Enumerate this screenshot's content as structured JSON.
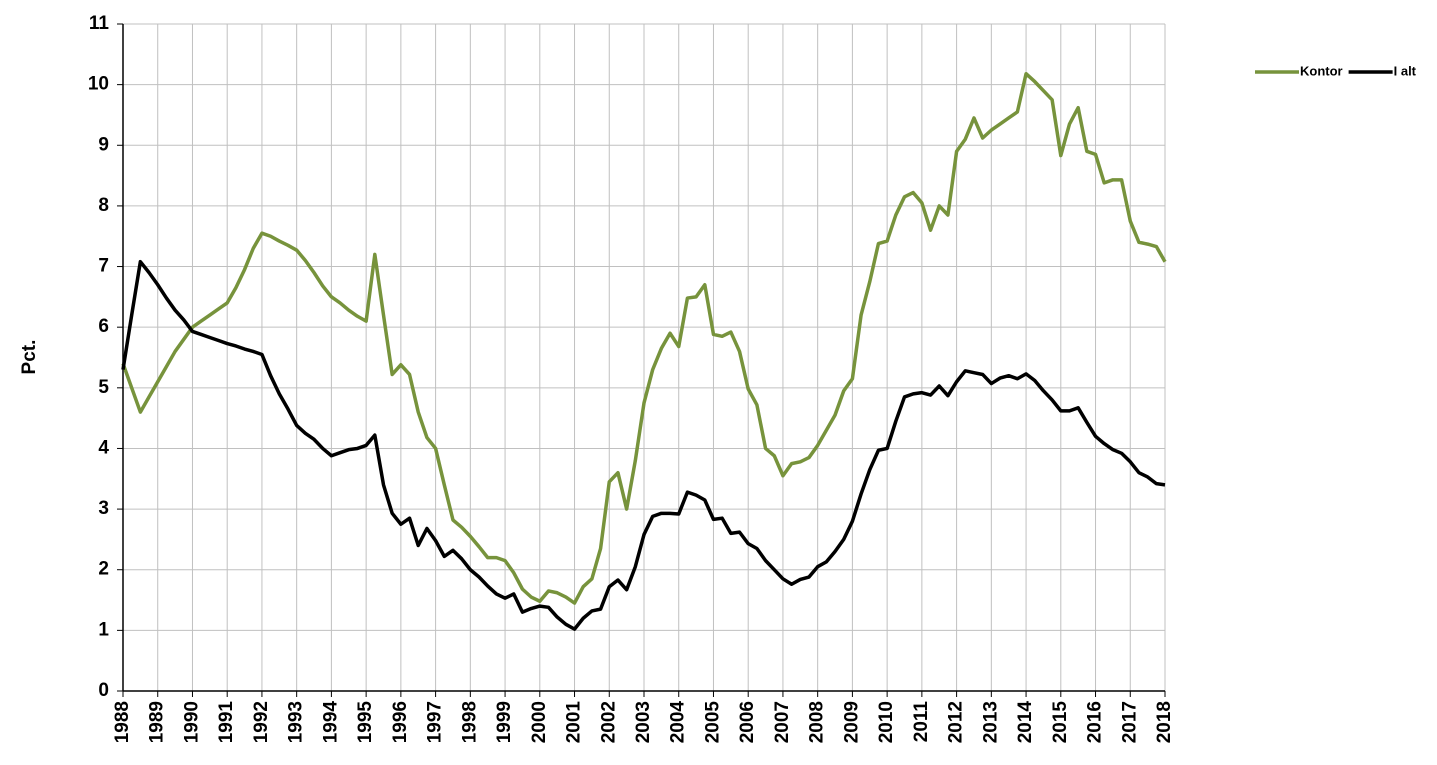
{
  "chart_data": {
    "type": "line",
    "ylabel": "Pct.",
    "x": [
      1988,
      1988.25,
      1988.5,
      1988.75,
      1989,
      1989.25,
      1989.5,
      1989.75,
      1990,
      1990.25,
      1990.5,
      1990.75,
      1991,
      1991.25,
      1991.5,
      1991.75,
      1992,
      1992.25,
      1992.5,
      1992.75,
      1993,
      1993.25,
      1993.5,
      1993.75,
      1994,
      1994.25,
      1994.5,
      1994.75,
      1995,
      1995.25,
      1995.5,
      1995.75,
      1996,
      1996.25,
      1996.5,
      1996.75,
      1997,
      1997.25,
      1997.5,
      1997.75,
      1998,
      1998.25,
      1998.5,
      1998.75,
      1999,
      1999.25,
      1999.5,
      1999.75,
      2000,
      2000.25,
      2000.5,
      2000.75,
      2001,
      2001.25,
      2001.5,
      2001.75,
      2002,
      2002.25,
      2002.5,
      2002.75,
      2003,
      2003.25,
      2003.5,
      2003.75,
      2004,
      2004.25,
      2004.5,
      2004.75,
      2005,
      2005.25,
      2005.5,
      2005.75,
      2006,
      2006.25,
      2006.5,
      2006.75,
      2007,
      2007.25,
      2007.5,
      2007.75,
      2008,
      2008.25,
      2008.5,
      2008.75,
      2009,
      2009.25,
      2009.5,
      2009.75,
      2010,
      2010.25,
      2010.5,
      2010.75,
      2011,
      2011.25,
      2011.5,
      2011.75,
      2012,
      2012.25,
      2012.5,
      2012.75,
      2013,
      2013.25,
      2013.5,
      2013.75,
      2014,
      2014.25,
      2014.5,
      2014.75,
      2015,
      2015.25,
      2015.5,
      2015.75,
      2016,
      2016.25,
      2016.5,
      2016.75,
      2017,
      2017.25,
      2017.5,
      2017.75,
      2018
    ],
    "series": [
      {
        "name": "Kontor",
        "color": "#77933c",
        "values": [
          5.4,
          5.0,
          4.6,
          4.85,
          5.1,
          5.35,
          5.6,
          5.8,
          6.0,
          6.1,
          6.2,
          6.3,
          6.4,
          6.65,
          6.95,
          7.3,
          7.55,
          7.5,
          7.42,
          7.35,
          7.27,
          7.1,
          6.9,
          6.68,
          6.5,
          6.4,
          6.28,
          6.18,
          6.1,
          7.2,
          6.2,
          5.22,
          5.38,
          5.22,
          4.6,
          4.18,
          4.0,
          3.4,
          2.82,
          2.7,
          2.55,
          2.38,
          2.2,
          2.2,
          2.15,
          1.95,
          1.68,
          1.55,
          1.48,
          1.65,
          1.62,
          1.55,
          1.45,
          1.72,
          1.85,
          2.35,
          3.45,
          3.6,
          3.0,
          3.8,
          4.75,
          5.3,
          5.65,
          5.9,
          5.68,
          6.48,
          6.5,
          6.7,
          5.88,
          5.85,
          5.92,
          5.6,
          4.98,
          4.72,
          4.0,
          3.88,
          3.55,
          3.75,
          3.78,
          3.85,
          4.05,
          4.3,
          4.55,
          4.95,
          5.15,
          6.2,
          6.75,
          7.38,
          7.42,
          7.85,
          8.15,
          8.22,
          8.05,
          7.6,
          8.0,
          7.85,
          8.9,
          9.1,
          9.45,
          9.12,
          9.25,
          9.35,
          9.45,
          9.55,
          10.18,
          10.05,
          9.9,
          9.75,
          8.83,
          9.35,
          9.62,
          8.9,
          8.85,
          8.38,
          8.43,
          8.43,
          7.75,
          7.4,
          7.37,
          7.33,
          7.08
        ]
      },
      {
        "name": "I alt",
        "color": "#000000",
        "values": [
          5.3,
          6.2,
          7.08,
          6.9,
          6.7,
          6.48,
          6.28,
          6.12,
          5.93,
          5.88,
          5.83,
          5.78,
          5.73,
          5.69,
          5.64,
          5.6,
          5.55,
          5.2,
          4.9,
          4.65,
          4.38,
          4.25,
          4.15,
          4.0,
          3.88,
          3.93,
          3.98,
          4.0,
          4.05,
          4.22,
          3.4,
          2.93,
          2.75,
          2.85,
          2.4,
          2.68,
          2.48,
          2.22,
          2.32,
          2.18,
          2.0,
          1.88,
          1.73,
          1.6,
          1.53,
          1.6,
          1.3,
          1.36,
          1.4,
          1.38,
          1.22,
          1.1,
          1.02,
          1.2,
          1.32,
          1.35,
          1.72,
          1.83,
          1.67,
          2.05,
          2.58,
          2.88,
          2.93,
          2.93,
          2.92,
          3.28,
          3.23,
          3.15,
          2.83,
          2.85,
          2.6,
          2.62,
          2.43,
          2.35,
          2.15,
          2.0,
          1.85,
          1.76,
          1.84,
          1.88,
          2.05,
          2.13,
          2.3,
          2.5,
          2.8,
          3.25,
          3.65,
          3.97,
          4.0,
          4.45,
          4.85,
          4.9,
          4.92,
          4.88,
          5.03,
          4.87,
          5.1,
          5.28,
          5.25,
          5.22,
          5.07,
          5.16,
          5.2,
          5.15,
          5.23,
          5.12,
          4.95,
          4.8,
          4.62,
          4.62,
          4.67,
          4.43,
          4.2,
          4.08,
          3.98,
          3.92,
          3.78,
          3.6,
          3.53,
          3.42,
          3.4
        ]
      }
    ],
    "xlim": [
      1988,
      2018
    ],
    "xticks": [
      1988,
      1989,
      1990,
      1991,
      1992,
      1993,
      1994,
      1995,
      1996,
      1997,
      1998,
      1999,
      2000,
      2001,
      2002,
      2003,
      2004,
      2005,
      2006,
      2007,
      2008,
      2009,
      2010,
      2011,
      2012,
      2013,
      2014,
      2015,
      2016,
      2017,
      2018
    ],
    "ylim": [
      0,
      11
    ],
    "yticks": [
      0,
      1,
      2,
      3,
      4,
      5,
      6,
      7,
      8,
      9,
      10,
      11
    ],
    "grid": true,
    "legend": "top-right"
  }
}
